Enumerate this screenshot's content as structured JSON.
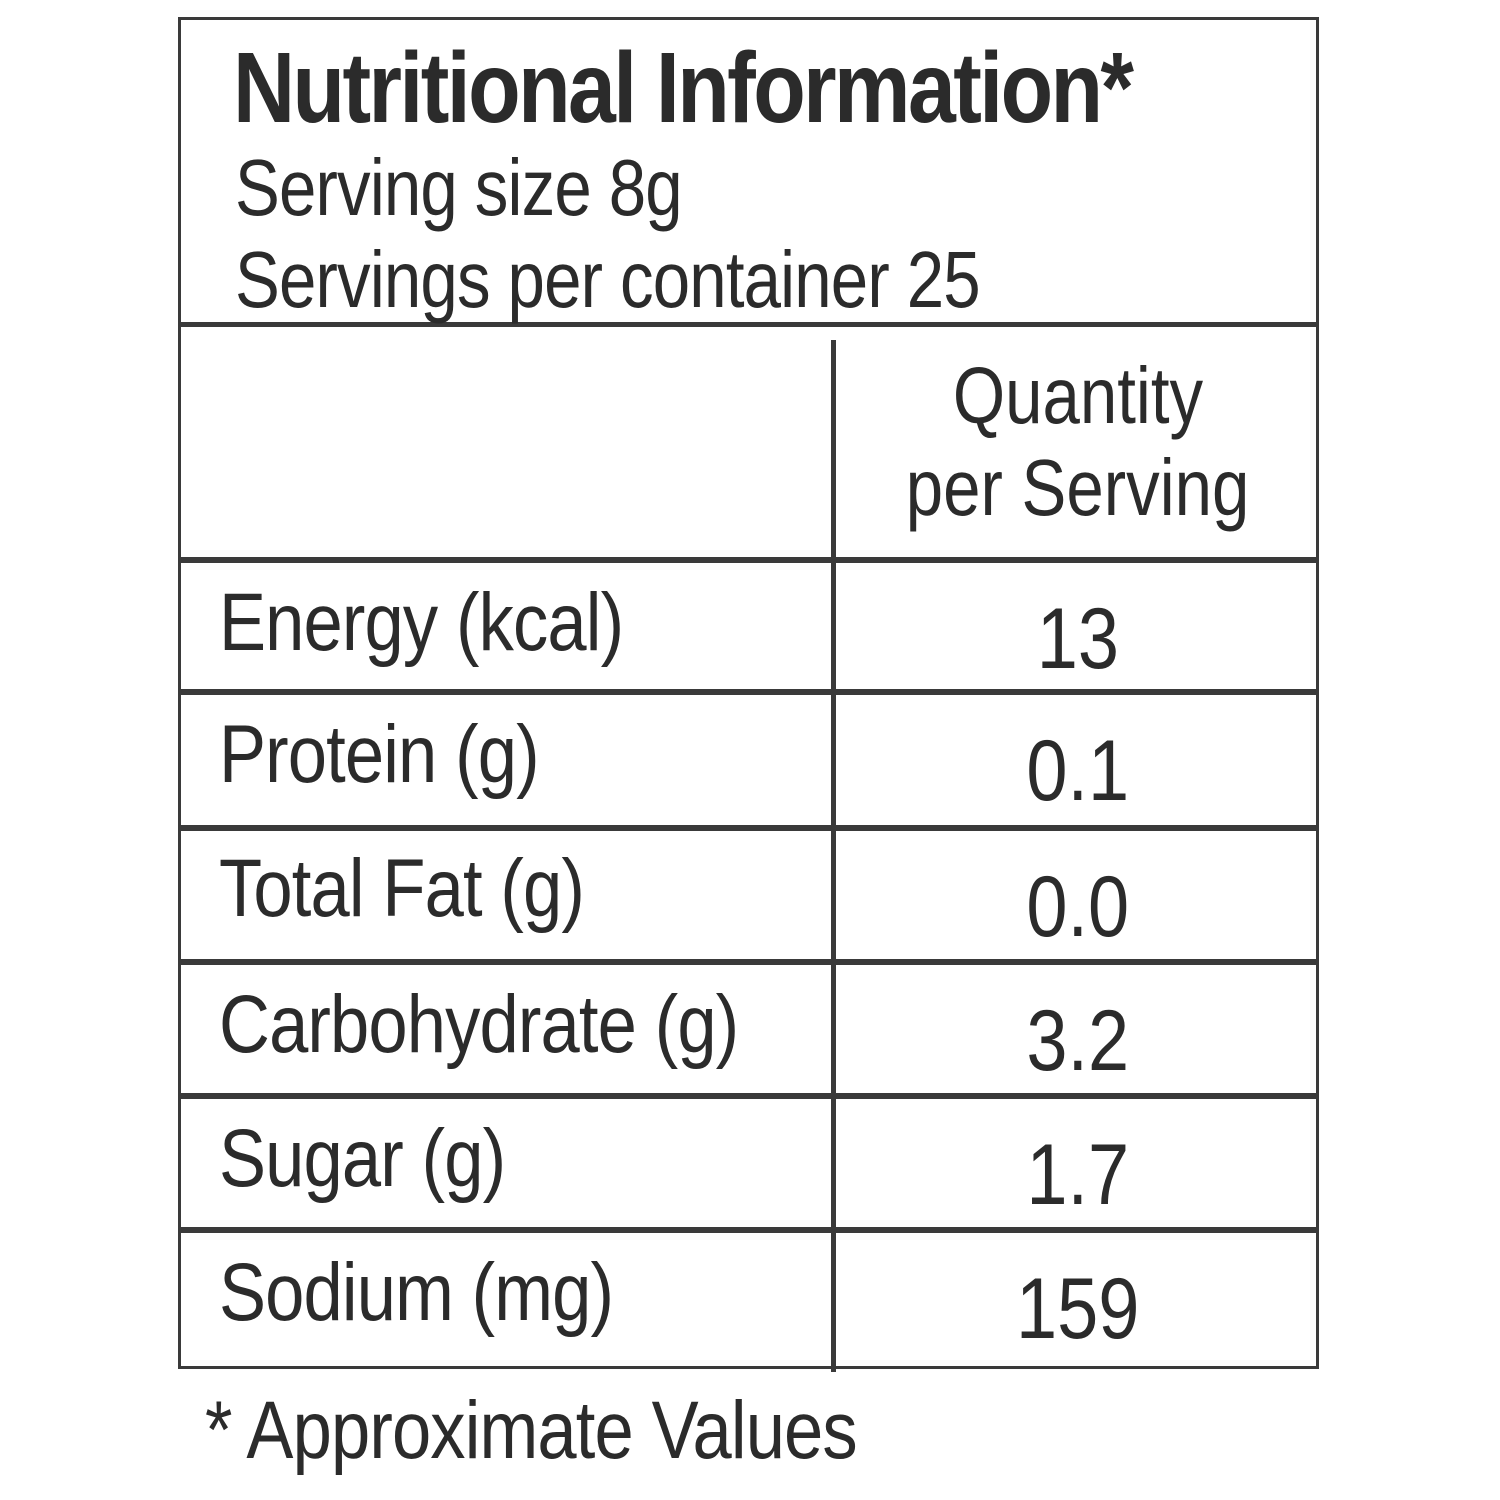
{
  "panel": {
    "title": "Nutritional Information*",
    "serving_size": "Serving size 8g",
    "servings_per_container": "Servings per container 25",
    "column_header": [
      "Quantity",
      "per Serving"
    ],
    "rows": [
      {
        "label": "Energy (kcal)",
        "value": "13"
      },
      {
        "label": "Protein (g)",
        "value": "0.1"
      },
      {
        "label": "Total Fat (g)",
        "value": "0.0"
      },
      {
        "label": "Carbohydrate (g)",
        "value": "3.2"
      },
      {
        "label": "Sugar (g)",
        "value": "1.7"
      },
      {
        "label": "Sodium (mg)",
        "value": "159"
      }
    ]
  },
  "footnote": "* Approximate Values"
}
